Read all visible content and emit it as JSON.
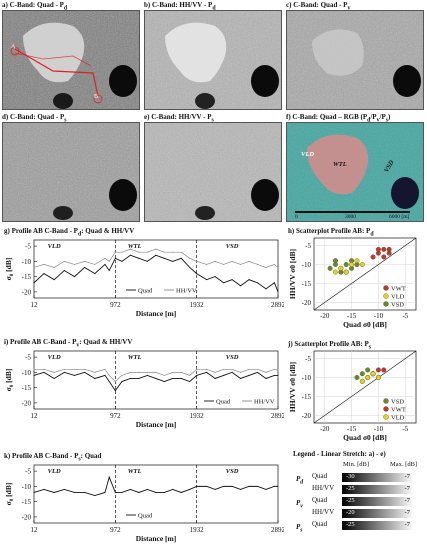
{
  "panels": {
    "a": {
      "title": "a) C-Band: Quad - P",
      "sub": "d",
      "markers": [
        "A",
        "B"
      ]
    },
    "b": {
      "title": "b) C-Band: HH/VV - P",
      "sub": "d"
    },
    "c": {
      "title": "c) C-Band: Quad - P",
      "sub": "v"
    },
    "d": {
      "title": "d) C-Band: Quad - P",
      "sub": "s"
    },
    "e": {
      "title": "e) C-Band: HH/VV - P",
      "sub": "s"
    },
    "f": {
      "title": "f) C-Band: Quad – RGB (P",
      "sub_seq": [
        "d",
        "/P",
        "v",
        "/P",
        "s",
        ")"
      ],
      "labels": [
        "VLD",
        "WTL",
        "VSD"
      ],
      "scale": [
        "0",
        "3000",
        "6000 [m]"
      ]
    }
  },
  "profiles": {
    "g": {
      "title": "g) Profile AB C-Band - P",
      "sub": "d",
      "suffix": ": Quad & HH/VV",
      "ylabel": "σ",
      "ylabel_sub": "0",
      "ylabel_unit": " [dB]",
      "xlabel": "Distance [m]",
      "yticks": [
        "-5",
        "-10",
        "-15",
        "-20"
      ],
      "xticks": [
        "12",
        "972",
        "1932",
        "2892"
      ],
      "zones": [
        "VLD",
        "WTL",
        "VSD"
      ],
      "legend": [
        "Quad",
        "HH/VV"
      ]
    },
    "i": {
      "title": "i) Profile AB C-Band - P",
      "sub": "v",
      "suffix": ": Quad & HH/VV",
      "ylabel": "σ",
      "ylabel_sub": "0",
      "ylabel_unit": " [dB]",
      "xlabel": "Distance [m]",
      "yticks": [
        "-5",
        "-10",
        "-15",
        "-20"
      ],
      "xticks": [
        "12",
        "972",
        "1932",
        "2892"
      ],
      "zones": [
        "VLD",
        "WTL",
        "VSD"
      ],
      "legend": [
        "Quad",
        "HH/VV"
      ]
    },
    "k": {
      "title": "k) Profile AB C-Band - P",
      "sub": "s",
      "suffix": ": Quad",
      "ylabel": "σ",
      "ylabel_sub": "0",
      "ylabel_unit": " [dB]",
      "xlabel": "Distance [m]",
      "yticks": [
        "-5",
        "-10",
        "-15",
        "-20"
      ],
      "xticks": [
        "12",
        "972",
        "1932",
        "2892"
      ],
      "zones": [
        "VLD",
        "WTL",
        "VSD"
      ],
      "legend": [
        "Quad"
      ]
    }
  },
  "scatters": {
    "h": {
      "title": "h) Scatterplot  Profile AB: P",
      "sub": "d",
      "xlabel": "Quad σ0 [dB]",
      "ylabel": "HH/VV σ0 [dB]",
      "xticks": [
        "-20",
        "-15",
        "-10",
        "-5"
      ],
      "yticks": [
        "-5",
        "-10",
        "-15",
        "-20"
      ],
      "legend": [
        {
          "name": "VWT",
          "color": "#c0392b"
        },
        {
          "name": "VLD",
          "color": "#e8d21d"
        },
        {
          "name": "VSD",
          "color": "#6a8a2a"
        }
      ]
    },
    "j": {
      "title": "j) Scatterplot  Profile AB: P",
      "sub": "s",
      "xlabel": "Quad σ0 [dB]",
      "ylabel": "HH/VV σ0 [dB]",
      "xticks": [
        "-20",
        "-15",
        "-10",
        "-5"
      ],
      "yticks": [
        "-5",
        "-10",
        "-15",
        "-20"
      ],
      "legend": [
        {
          "name": "VSD",
          "color": "#6a8a2a"
        },
        {
          "name": "VWT",
          "color": "#c0392b"
        },
        {
          "name": "VLD",
          "color": "#e8d21d"
        }
      ]
    }
  },
  "stretch_legend": {
    "title": "Legend - Linear Stretch: a) - e)",
    "min_header": "Min. [dB]",
    "max_header": "Max. [dB]",
    "rows": [
      {
        "group": "P",
        "group_sub": "d",
        "label": "Quad",
        "min": "-30",
        "max": "-7"
      },
      {
        "group": "",
        "group_sub": "",
        "label": "HH/VV",
        "min": "-25",
        "max": "-7"
      },
      {
        "group": "P",
        "group_sub": "v",
        "label": "Quad",
        "min": "-25",
        "max": "-7"
      },
      {
        "group": "",
        "group_sub": "",
        "label": "HH/VV",
        "min": "-20",
        "max": "-7"
      },
      {
        "group": "P",
        "group_sub": "s",
        "label": "Quad",
        "min": "-25",
        "max": "-7"
      }
    ]
  },
  "chart_data": [
    {
      "type": "line",
      "panel": "g",
      "xlabel": "Distance [m]",
      "ylabel": "σ0 [dB]",
      "xlim": [
        12,
        2892
      ],
      "ylim": [
        -22,
        -3
      ],
      "grid": false,
      "legend_position": "bottom-center",
      "series": [
        {
          "name": "Quad",
          "x": [
            12,
            130,
            250,
            370,
            490,
            610,
            730,
            850,
            900,
            972,
            1050,
            1150,
            1250,
            1350,
            1450,
            1550,
            1650,
            1750,
            1850,
            1932,
            2050,
            2150,
            2250,
            2350,
            2450,
            2550,
            2650,
            2750,
            2850,
            2892
          ],
          "values": [
            -17,
            -14,
            -16,
            -13,
            -15,
            -12,
            -14,
            -11,
            -13,
            -9,
            -10,
            -8,
            -9,
            -10,
            -8,
            -9,
            -10,
            -9,
            -12,
            -14,
            -16,
            -15,
            -17,
            -16,
            -18,
            -16,
            -17,
            -19,
            -17,
            -20
          ]
        },
        {
          "name": "HH/VV",
          "x": [
            12,
            130,
            250,
            370,
            490,
            610,
            730,
            850,
            900,
            972,
            1050,
            1150,
            1250,
            1350,
            1450,
            1550,
            1650,
            1750,
            1850,
            1932,
            2050,
            2150,
            2250,
            2350,
            2450,
            2550,
            2650,
            2750,
            2850,
            2892
          ],
          "values": [
            -12,
            -11,
            -12,
            -10,
            -11,
            -10,
            -11,
            -9,
            -10,
            -7,
            -7,
            -6,
            -7,
            -7,
            -6,
            -7,
            -7,
            -7,
            -9,
            -10,
            -11,
            -10,
            -11,
            -10,
            -11,
            -10,
            -11,
            -12,
            -11,
            -12
          ]
        }
      ]
    },
    {
      "type": "line",
      "panel": "i",
      "xlabel": "Distance [m]",
      "ylabel": "σ0 [dB]",
      "xlim": [
        12,
        2892
      ],
      "ylim": [
        -22,
        -3
      ],
      "grid": false,
      "legend_position": "bottom-right",
      "series": [
        {
          "name": "Quad",
          "x": [
            12,
            130,
            250,
            370,
            490,
            610,
            730,
            850,
            900,
            972,
            1050,
            1150,
            1250,
            1350,
            1450,
            1550,
            1650,
            1750,
            1850,
            1932,
            2050,
            2150,
            2250,
            2350,
            2450,
            2550,
            2650,
            2750,
            2850,
            2892
          ],
          "values": [
            -11,
            -10,
            -12,
            -10,
            -11,
            -10,
            -12,
            -11,
            -13,
            -16,
            -13,
            -12,
            -12,
            -11,
            -12,
            -13,
            -12,
            -12,
            -13,
            -11,
            -10,
            -12,
            -11,
            -10,
            -12,
            -11,
            -10,
            -12,
            -11,
            -11
          ]
        },
        {
          "name": "HH/VV",
          "x": [
            12,
            130,
            250,
            370,
            490,
            610,
            730,
            850,
            900,
            972,
            1050,
            1150,
            1250,
            1350,
            1450,
            1550,
            1650,
            1750,
            1850,
            1932,
            2050,
            2150,
            2250,
            2350,
            2450,
            2550,
            2650,
            2750,
            2850,
            2892
          ],
          "values": [
            -9,
            -9,
            -10,
            -9,
            -9,
            -9,
            -10,
            -9,
            -11,
            -13,
            -11,
            -10,
            -10,
            -10,
            -10,
            -11,
            -10,
            -10,
            -11,
            -9,
            -9,
            -10,
            -9,
            -9,
            -10,
            -9,
            -9,
            -10,
            -9,
            -9
          ]
        }
      ]
    },
    {
      "type": "line",
      "panel": "k",
      "xlabel": "Distance [m]",
      "ylabel": "σ0 [dB]",
      "xlim": [
        12,
        2892
      ],
      "ylim": [
        -22,
        -3
      ],
      "grid": false,
      "legend_position": "bottom-center",
      "series": [
        {
          "name": "Quad",
          "x": [
            12,
            130,
            250,
            370,
            490,
            610,
            730,
            850,
            900,
            972,
            1050,
            1150,
            1250,
            1350,
            1450,
            1550,
            1650,
            1750,
            1850,
            1932,
            2050,
            2150,
            2250,
            2350,
            2450,
            2550,
            2650,
            2750,
            2850,
            2892
          ],
          "values": [
            -12,
            -11,
            -12,
            -11,
            -12,
            -12,
            -13,
            -12,
            -7,
            -12,
            -12,
            -11,
            -12,
            -11,
            -12,
            -12,
            -11,
            -12,
            -11,
            -10,
            -10,
            -11,
            -10,
            -10,
            -11,
            -10,
            -10,
            -11,
            -10,
            -10
          ]
        }
      ]
    },
    {
      "type": "scatter",
      "panel": "h",
      "xlabel": "Quad σ0 [dB]",
      "ylabel": "HH/VV σ0 [dB]",
      "xlim": [
        -22,
        -3
      ],
      "ylim": [
        -22,
        -3
      ],
      "grid": true,
      "legend_position": "bottom-right",
      "series": [
        {
          "name": "VSD",
          "x": [
            -18,
            -17,
            -16,
            -15,
            -17,
            -19,
            -16,
            -14,
            -18,
            -15
          ],
          "values": [
            -10,
            -11,
            -10,
            -9,
            -12,
            -11,
            -12,
            -10,
            -9,
            -11
          ]
        },
        {
          "name": "VLD",
          "x": [
            -17,
            -15,
            -14,
            -16,
            -13,
            -18
          ],
          "values": [
            -11,
            -10,
            -9,
            -12,
            -10,
            -12
          ]
        },
        {
          "name": "VWT",
          "x": [
            -10,
            -9,
            -8,
            -9,
            -10,
            -8,
            -11
          ],
          "values": [
            -7,
            -6,
            -7,
            -8,
            -6,
            -6,
            -8
          ]
        }
      ]
    },
    {
      "type": "scatter",
      "panel": "j",
      "xlabel": "Quad σ0 [dB]",
      "ylabel": "HH/VV σ0 [dB]",
      "xlim": [
        -22,
        -3
      ],
      "ylim": [
        -22,
        -3
      ],
      "grid": true,
      "legend_position": "bottom-right",
      "series": [
        {
          "name": "VSD",
          "x": [
            -13,
            -12,
            -14,
            -11
          ],
          "values": [
            -9,
            -8,
            -10,
            -9
          ]
        },
        {
          "name": "VWT",
          "x": [
            -11,
            -10,
            -12,
            -9,
            -10,
            -13,
            -11
          ],
          "values": [
            -9,
            -8,
            -10,
            -8,
            -10,
            -11,
            -9
          ]
        },
        {
          "name": "VLD",
          "x": [
            -12,
            -11,
            -13,
            -10
          ],
          "values": [
            -10,
            -9,
            -11,
            -10
          ]
        }
      ]
    }
  ]
}
